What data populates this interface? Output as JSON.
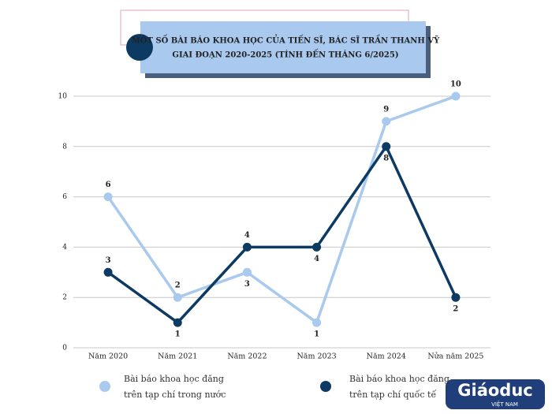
{
  "chart_data": {
    "type": "line",
    "title": [
      "MỘT SỐ BÀI BÁO KHOA HỌC CỦA TIẾN SĨ, BÁC SĨ TRẦN THANH VỸ",
      "GIAI ĐOẠN 2020-2025 (TÍNH ĐẾN THÁNG 6/2025)"
    ],
    "categories": [
      "Năm 2020",
      "Năm 2021",
      "Năm 2022",
      "Năm 2023",
      "Năm 2024",
      "Nửa năm 2025"
    ],
    "series": [
      {
        "name": "Bài báo khoa học đăng trên tạp chí trong nước",
        "color": "#a9c9ef",
        "values": [
          6,
          2,
          3,
          1,
          9,
          10
        ]
      },
      {
        "name": "Bài báo khoa học đăng trên tạp chí quốc tế",
        "color": "#0d3a63",
        "values": [
          3,
          1,
          4,
          4,
          8,
          2
        ]
      }
    ],
    "ylim": [
      0,
      10
    ],
    "yticks": [
      0,
      2,
      4,
      6,
      8,
      10
    ],
    "grid": true,
    "logo": [
      "Giáoduc",
      "VIỆT NAM"
    ]
  }
}
